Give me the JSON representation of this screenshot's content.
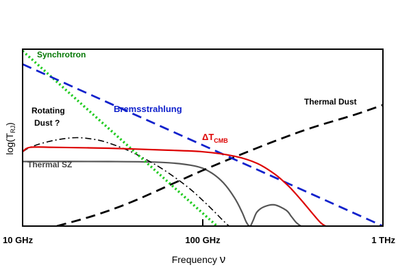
{
  "chart_data": {
    "type": "line",
    "title": "",
    "xlabel": "Frequency",
    "xlabel_symbol": "ν",
    "ylabel_main": "log(T",
    "ylabel_sub": "RJ",
    "ylabel_close": ")",
    "x_scale": "log",
    "x_unit": "GHz",
    "xlim": [
      10,
      1000
    ],
    "ylim": [
      0,
      1
    ],
    "grid": false,
    "legend": "none",
    "ticks": [
      {
        "value": 10,
        "label": "10 GHz"
      },
      {
        "value": 100,
        "label": "100 GHz"
      },
      {
        "value": 1000,
        "label": "1 THz"
      }
    ],
    "series": [
      {
        "name": "Synchrotron",
        "color": "#22cc22",
        "dash": "dotted",
        "label_color": "#007700",
        "x": [
          10,
          120
        ],
        "y": [
          0.99,
          0.0
        ]
      },
      {
        "name": "Bremsstrahlung",
        "color": "#1122cc",
        "dash": "dashed",
        "label_color": "#1122cc",
        "x": [
          10,
          1000
        ],
        "y": [
          0.915,
          0.0
        ]
      },
      {
        "name": "Thermal Dust",
        "color": "#000000",
        "dash": "dashed",
        "label_color": "#000000",
        "x": [
          15.5,
          25,
          40,
          70,
          100,
          150,
          250,
          400,
          700,
          1000
        ],
        "y": [
          0.0,
          0.06,
          0.135,
          0.245,
          0.315,
          0.39,
          0.48,
          0.555,
          0.63,
          0.685
        ]
      },
      {
        "name": "ΔT",
        "name_sub": "CMB",
        "color": "#dd0000",
        "dash": "solid",
        "label_color": "#dd0000",
        "x": [
          10,
          11,
          15,
          30,
          60,
          100,
          150,
          200,
          250,
          300,
          350,
          400,
          450,
          480
        ],
        "y": [
          0.42,
          0.445,
          0.445,
          0.44,
          0.43,
          0.42,
          0.395,
          0.355,
          0.295,
          0.225,
          0.15,
          0.08,
          0.02,
          0.0
        ]
      },
      {
        "name": "Thermal SZ",
        "color": "#555555",
        "dash": "solid",
        "label_color": "#444444",
        "x": [
          10,
          30,
          60,
          90,
          110,
          130,
          150,
          165,
          175,
          183,
          190,
          200,
          220,
          250,
          290,
          310,
          330,
          350
        ],
        "y": [
          0.365,
          0.365,
          0.36,
          0.34,
          0.305,
          0.245,
          0.16,
          0.08,
          0.02,
          0.0,
          0.03,
          0.08,
          0.11,
          0.12,
          0.09,
          0.055,
          0.02,
          0.0
        ]
      },
      {
        "name": "Rotating Dust ?",
        "name_line1": "Rotating",
        "name_line2": "Dust ?",
        "color": "#000000",
        "dash": "dashdot",
        "label_color": "#000000",
        "x": [
          10,
          11,
          13,
          16,
          20,
          25,
          30,
          40,
          55,
          70,
          85,
          100,
          115,
          130,
          140
        ],
        "y": [
          0.42,
          0.445,
          0.47,
          0.49,
          0.5,
          0.49,
          0.47,
          0.42,
          0.345,
          0.275,
          0.21,
          0.145,
          0.085,
          0.03,
          0.0
        ]
      }
    ]
  }
}
